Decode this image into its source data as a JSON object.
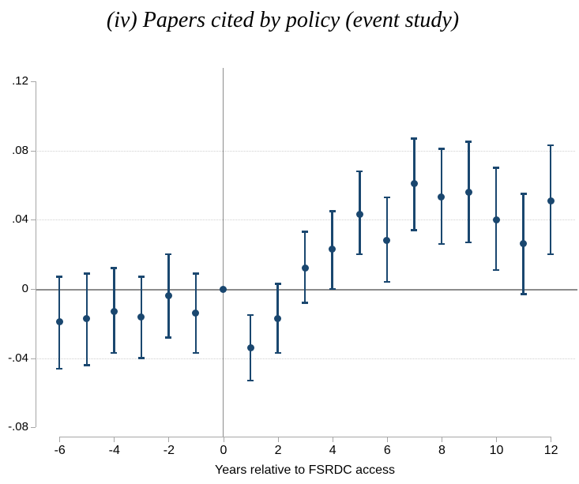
{
  "title": {
    "text": "(iv) Papers cited by policy (event study)"
  },
  "chart_data": {
    "type": "scatter",
    "subtype": "event-study-coefficients-with-95ci",
    "title": "(iv) Papers cited by policy (event study)",
    "xlabel": "Years relative to FSRDC access",
    "ylabel": "",
    "xlim": [
      -6.9,
      13.0
    ],
    "ylim": [
      -0.085,
      0.127
    ],
    "x_ticks": [
      -6,
      -4,
      -2,
      0,
      2,
      4,
      6,
      8,
      10,
      12
    ],
    "y_ticks": [
      {
        "value": 0.12,
        "label": ".12"
      },
      {
        "value": 0.08,
        "label": ".08"
      },
      {
        "value": 0.04,
        "label": ".04"
      },
      {
        "value": 0.0,
        "label": "0"
      },
      {
        "value": -0.04,
        "label": "-.04"
      },
      {
        "value": -0.08,
        "label": "-.08"
      }
    ],
    "gridlines_y": [
      0.08,
      0.04,
      -0.04
    ],
    "grid": "dotted-horizontal",
    "legend": null,
    "reference_lines": {
      "horizontal_at_y": 0,
      "vertical_at_x": 0
    },
    "series": [
      {
        "name": "coefficient-estimates",
        "marker": "circle",
        "points": [
          {
            "x": -6,
            "y": -0.019,
            "ci_low": -0.046,
            "ci_high": 0.007
          },
          {
            "x": -5,
            "y": -0.017,
            "ci_low": -0.044,
            "ci_high": 0.009
          },
          {
            "x": -4,
            "y": -0.013,
            "ci_low": -0.037,
            "ci_high": 0.012
          },
          {
            "x": -3,
            "y": -0.016,
            "ci_low": -0.04,
            "ci_high": 0.007
          },
          {
            "x": -2,
            "y": -0.004,
            "ci_low": -0.028,
            "ci_high": 0.02
          },
          {
            "x": -1,
            "y": -0.014,
            "ci_low": -0.037,
            "ci_high": 0.009
          },
          {
            "x": 0,
            "y": 0.0,
            "ci_low": null,
            "ci_high": null
          },
          {
            "x": 1,
            "y": -0.034,
            "ci_low": -0.053,
            "ci_high": -0.015
          },
          {
            "x": 2,
            "y": -0.017,
            "ci_low": -0.037,
            "ci_high": 0.003
          },
          {
            "x": 3,
            "y": 0.012,
            "ci_low": -0.008,
            "ci_high": 0.033
          },
          {
            "x": 4,
            "y": 0.023,
            "ci_low": 0.0,
            "ci_high": 0.045
          },
          {
            "x": 5,
            "y": 0.043,
            "ci_low": 0.02,
            "ci_high": 0.068
          },
          {
            "x": 6,
            "y": 0.028,
            "ci_low": 0.004,
            "ci_high": 0.053
          },
          {
            "x": 7,
            "y": 0.061,
            "ci_low": 0.034,
            "ci_high": 0.087
          },
          {
            "x": 8,
            "y": 0.053,
            "ci_low": 0.026,
            "ci_high": 0.081
          },
          {
            "x": 9,
            "y": 0.056,
            "ci_low": 0.027,
            "ci_high": 0.085
          },
          {
            "x": 10,
            "y": 0.04,
            "ci_low": 0.011,
            "ci_high": 0.07
          },
          {
            "x": 11,
            "y": 0.026,
            "ci_low": -0.003,
            "ci_high": 0.055
          },
          {
            "x": 12,
            "y": 0.051,
            "ci_low": 0.02,
            "ci_high": 0.083
          }
        ]
      }
    ],
    "colors": {
      "marker": "#1a476f",
      "error_bar": "#1a476f",
      "zero_line": "#8c8c8c",
      "reference_vline": "#8c8c8c",
      "axis": "#a6a6a6",
      "grid": "#d0d0d0",
      "text": "#000000"
    }
  }
}
